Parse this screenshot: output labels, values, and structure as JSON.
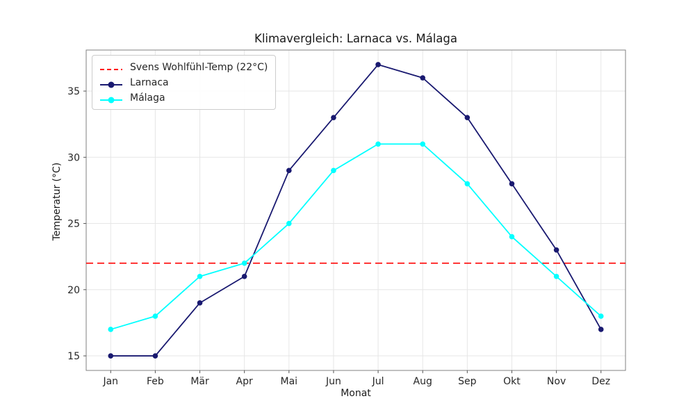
{
  "figure": {
    "title": "Klimavergleich: Larnaca vs. Málaga",
    "xlabel": "Monat",
    "ylabel": "Temperatur (°C)"
  },
  "legend": {
    "items": [
      {
        "label": "Svens Wohlfühl-Temp (22°C)",
        "style": "dashed",
        "color": "#FF0000"
      },
      {
        "label": "Larnaca",
        "style": "line-marker",
        "color": "#191970"
      },
      {
        "label": "Málaga",
        "style": "line-marker",
        "color": "#00FFFF"
      }
    ]
  },
  "colors": {
    "background": "#FFFFFF",
    "grid": "#E6E6E6",
    "spine": "#808080",
    "tick": "#555555",
    "tick_label": "#262626",
    "larnaca": "#191970",
    "malaga": "#00FFFF",
    "reference": "#FF0000"
  },
  "chart_data": {
    "type": "line",
    "title": "Klimavergleich: Larnaca vs. Málaga",
    "xlabel": "Monat",
    "ylabel": "Temperatur (°C)",
    "categories": [
      "Jan",
      "Feb",
      "Mär",
      "Apr",
      "Mai",
      "Jun",
      "Jul",
      "Aug",
      "Sep",
      "Okt",
      "Nov",
      "Dez"
    ],
    "series": [
      {
        "name": "Larnaca",
        "color": "#191970",
        "values": [
          15,
          15,
          19,
          21,
          29,
          33,
          37,
          36,
          33,
          28,
          23,
          17
        ]
      },
      {
        "name": "Málaga",
        "color": "#00FFFF",
        "values": [
          17,
          18,
          21,
          22,
          25,
          29,
          31,
          31,
          28,
          24,
          21,
          18
        ]
      }
    ],
    "reference_line": {
      "label": "Svens Wohlfühl-Temp (22°C)",
      "value": 22,
      "color": "#FF0000",
      "style": "dashed"
    },
    "yticks": [
      15,
      20,
      25,
      30,
      35
    ],
    "ylim": [
      13.9,
      38.1
    ],
    "xlim": [
      -0.55,
      11.55
    ],
    "grid": true,
    "legend_position": "upper left"
  }
}
